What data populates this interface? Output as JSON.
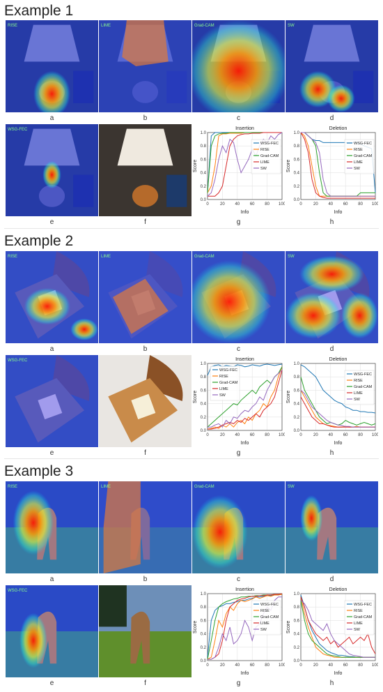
{
  "examples": [
    {
      "title": "Example 1",
      "captions": [
        "a",
        "b",
        "c",
        "d",
        "e",
        "f",
        "g",
        "h"
      ],
      "heatmap_labels": {
        "a": "RISE",
        "b": "LIME",
        "c": "Grad-CAM",
        "d": "SW",
        "e": "WSG-FEC"
      },
      "image": "lamp"
    },
    {
      "title": "Example 2",
      "captions": [
        "a",
        "b",
        "c",
        "d",
        "e",
        "f",
        "g",
        "h"
      ],
      "heatmap_labels": {
        "a": "RISE",
        "b": "LIME",
        "c": "Grad-CAM",
        "d": "SW",
        "e": "WSG-FEC"
      },
      "image": "bread"
    },
    {
      "title": "Example 3",
      "captions": [
        "a",
        "b",
        "c",
        "d",
        "e",
        "f",
        "g",
        "h"
      ],
      "heatmap_labels": {
        "a": "RISE",
        "b": "LIME",
        "c": "Grad-CAM",
        "d": "SW",
        "e": "WSG-FEC"
      },
      "image": "deer"
    }
  ],
  "legend": [
    "WSG-FEC",
    "RISE",
    "Grad-CAM",
    "LIME",
    "SW"
  ],
  "colors": {
    "WSG-FEC": "#1f77b4",
    "RISE": "#ff7f0e",
    "Grad-CAM": "#2ca02c",
    "LIME": "#d62728",
    "SW": "#9467bd"
  },
  "chart_data": [
    {
      "id": "ex1-insertion",
      "type": "line",
      "title": "Insertion",
      "xlabel": "Info",
      "ylabel": "Score",
      "xlim": [
        0,
        100
      ],
      "ylim": [
        0,
        1.0
      ],
      "xticks": [
        0,
        20,
        40,
        60,
        80,
        100
      ],
      "yticks": [
        0.0,
        0.2,
        0.4,
        0.6,
        0.8,
        1.0
      ],
      "x": [
        0,
        5,
        10,
        15,
        20,
        25,
        30,
        35,
        40,
        45,
        50,
        55,
        60,
        65,
        70,
        75,
        80,
        85,
        90,
        95,
        100
      ],
      "legend_position": "right",
      "series": [
        {
          "name": "WSG-FEC",
          "values": [
            0.1,
            0.95,
            1.0,
            1.0,
            1.0,
            1.0,
            1.0,
            1.0,
            1.0,
            1.0,
            1.0,
            1.0,
            1.0,
            1.0,
            1.0,
            1.0,
            1.0,
            1.0,
            1.0,
            1.0,
            1.0
          ]
        },
        {
          "name": "RISE",
          "values": [
            0.1,
            0.2,
            0.5,
            0.95,
            0.98,
            0.98,
            0.99,
            0.99,
            0.99,
            0.99,
            1.0,
            1.0,
            1.0,
            1.0,
            1.0,
            1.0,
            1.0,
            1.0,
            1.0,
            1.0,
            1.0
          ]
        },
        {
          "name": "Grad-CAM",
          "values": [
            0.1,
            0.8,
            0.95,
            0.98,
            0.99,
            0.99,
            1.0,
            1.0,
            1.0,
            1.0,
            1.0,
            1.0,
            1.0,
            1.0,
            1.0,
            1.0,
            1.0,
            1.0,
            1.0,
            1.0,
            1.0
          ]
        },
        {
          "name": "LIME",
          "values": [
            0.05,
            0.05,
            0.05,
            0.1,
            0.2,
            0.5,
            0.8,
            0.9,
            0.95,
            0.97,
            0.98,
            0.98,
            0.99,
            0.99,
            0.99,
            1.0,
            1.0,
            1.0,
            1.0,
            1.0,
            1.0
          ]
        },
        {
          "name": "SW",
          "values": [
            0.05,
            0.1,
            0.3,
            0.6,
            0.8,
            0.7,
            0.9,
            0.85,
            0.6,
            0.4,
            0.5,
            0.6,
            0.75,
            0.65,
            0.8,
            0.9,
            0.85,
            0.95,
            0.9,
            0.97,
            1.0
          ]
        }
      ]
    },
    {
      "id": "ex1-deletion",
      "type": "line",
      "title": "Deletion",
      "xlabel": "Info",
      "ylabel": "Score",
      "xlim": [
        0,
        100
      ],
      "ylim": [
        0,
        1.0
      ],
      "xticks": [
        0,
        20,
        40,
        60,
        80,
        100
      ],
      "yticks": [
        0.0,
        0.2,
        0.4,
        0.6,
        0.8,
        1.0
      ],
      "x": [
        0,
        5,
        10,
        15,
        20,
        25,
        30,
        35,
        40,
        45,
        50,
        55,
        60,
        65,
        70,
        75,
        80,
        85,
        90,
        95,
        100
      ],
      "legend_position": "right",
      "series": [
        {
          "name": "WSG-FEC",
          "values": [
            1.0,
            1.0,
            0.95,
            0.9,
            0.88,
            0.88,
            0.85,
            0.85,
            0.85,
            0.85,
            0.85,
            0.85,
            0.85,
            0.85,
            0.85,
            0.85,
            0.83,
            0.8,
            0.78,
            0.76,
            0.1
          ]
        },
        {
          "name": "RISE",
          "values": [
            1.0,
            0.95,
            0.8,
            0.5,
            0.2,
            0.05,
            0.05,
            0.05,
            0.05,
            0.05,
            0.05,
            0.05,
            0.05,
            0.05,
            0.05,
            0.05,
            0.05,
            0.05,
            0.05,
            0.05,
            0.05
          ]
        },
        {
          "name": "Grad-CAM",
          "values": [
            1.0,
            1.0,
            0.95,
            0.9,
            0.8,
            0.4,
            0.1,
            0.05,
            0.05,
            0.05,
            0.05,
            0.05,
            0.05,
            0.05,
            0.05,
            0.05,
            0.1,
            0.1,
            0.1,
            0.1,
            0.1
          ]
        },
        {
          "name": "LIME",
          "values": [
            1.0,
            0.9,
            0.7,
            0.3,
            0.1,
            0.05,
            0.03,
            0.02,
            0.02,
            0.02,
            0.02,
            0.02,
            0.02,
            0.02,
            0.02,
            0.02,
            0.02,
            0.02,
            0.02,
            0.02,
            0.02
          ]
        },
        {
          "name": "SW",
          "values": [
            1.0,
            1.0,
            0.95,
            0.9,
            0.85,
            0.7,
            0.3,
            0.1,
            0.05,
            0.05,
            0.05,
            0.05,
            0.05,
            0.05,
            0.05,
            0.05,
            0.05,
            0.05,
            0.05,
            0.05,
            0.05
          ]
        }
      ]
    },
    {
      "id": "ex2-insertion",
      "type": "line",
      "title": "Insertion",
      "xlabel": "Info",
      "ylabel": "Score",
      "xlim": [
        0,
        100
      ],
      "ylim": [
        0,
        1.0
      ],
      "xticks": [
        0,
        20,
        40,
        60,
        80,
        100
      ],
      "yticks": [
        0.0,
        0.2,
        0.4,
        0.6,
        0.8,
        1.0
      ],
      "x": [
        0,
        5,
        10,
        15,
        20,
        25,
        30,
        35,
        40,
        45,
        50,
        55,
        60,
        65,
        70,
        75,
        80,
        85,
        90,
        95,
        100
      ],
      "legend_position": "top-left",
      "series": [
        {
          "name": "WSG-FEC",
          "values": [
            0.82,
            0.95,
            0.97,
            0.98,
            0.95,
            0.97,
            0.96,
            0.95,
            0.98,
            0.97,
            0.95,
            0.96,
            0.98,
            0.97,
            0.96,
            0.98,
            0.99,
            0.98,
            0.97,
            0.98,
            0.99
          ]
        },
        {
          "name": "RISE",
          "values": [
            0.02,
            0.03,
            0.05,
            0.03,
            0.08,
            0.05,
            0.1,
            0.05,
            0.12,
            0.15,
            0.1,
            0.2,
            0.15,
            0.25,
            0.3,
            0.4,
            0.35,
            0.5,
            0.6,
            0.8,
            0.95
          ]
        },
        {
          "name": "Grad-CAM",
          "values": [
            0.05,
            0.1,
            0.15,
            0.2,
            0.25,
            0.3,
            0.35,
            0.4,
            0.38,
            0.45,
            0.5,
            0.55,
            0.6,
            0.55,
            0.65,
            0.7,
            0.75,
            0.7,
            0.8,
            0.85,
            0.95
          ]
        },
        {
          "name": "LIME",
          "values": [
            0.02,
            0.02,
            0.03,
            0.05,
            0.08,
            0.1,
            0.12,
            0.1,
            0.15,
            0.12,
            0.18,
            0.15,
            0.2,
            0.25,
            0.2,
            0.3,
            0.35,
            0.4,
            0.5,
            0.7,
            0.9
          ]
        },
        {
          "name": "SW",
          "values": [
            0.05,
            0.05,
            0.08,
            0.1,
            0.05,
            0.15,
            0.1,
            0.2,
            0.18,
            0.25,
            0.3,
            0.28,
            0.35,
            0.4,
            0.5,
            0.45,
            0.6,
            0.7,
            0.8,
            0.85,
            0.9
          ]
        }
      ]
    },
    {
      "id": "ex2-deletion",
      "type": "line",
      "title": "Deletion",
      "xlabel": "Info",
      "ylabel": "Score",
      "xlim": [
        0,
        100
      ],
      "ylim": [
        0,
        1.0
      ],
      "xticks": [
        0,
        20,
        40,
        60,
        80,
        100
      ],
      "yticks": [
        0.0,
        0.2,
        0.4,
        0.6,
        0.8,
        1.0
      ],
      "x": [
        0,
        5,
        10,
        15,
        20,
        25,
        30,
        35,
        40,
        45,
        50,
        55,
        60,
        65,
        70,
        75,
        80,
        85,
        90,
        95,
        100
      ],
      "legend_position": "right",
      "series": [
        {
          "name": "WSG-FEC",
          "values": [
            0.98,
            0.95,
            0.9,
            0.85,
            0.8,
            0.7,
            0.6,
            0.55,
            0.5,
            0.45,
            0.42,
            0.4,
            0.35,
            0.33,
            0.3,
            0.3,
            0.28,
            0.28,
            0.27,
            0.27,
            0.26
          ]
        },
        {
          "name": "RISE",
          "values": [
            0.6,
            0.5,
            0.4,
            0.3,
            0.2,
            0.15,
            0.1,
            0.08,
            0.07,
            0.06,
            0.05,
            0.05,
            0.06,
            0.05,
            0.05,
            0.06,
            0.05,
            0.05,
            0.05,
            0.05,
            0.05
          ]
        },
        {
          "name": "Grad-CAM",
          "values": [
            0.8,
            0.6,
            0.5,
            0.4,
            0.3,
            0.2,
            0.15,
            0.1,
            0.12,
            0.1,
            0.08,
            0.1,
            0.15,
            0.12,
            0.1,
            0.08,
            0.1,
            0.12,
            0.1,
            0.08,
            0.1
          ]
        },
        {
          "name": "LIME",
          "values": [
            0.5,
            0.4,
            0.3,
            0.2,
            0.15,
            0.1,
            0.1,
            0.08,
            0.06,
            0.05,
            0.05,
            0.05,
            0.05,
            0.05,
            0.05,
            0.05,
            0.05,
            0.05,
            0.05,
            0.05,
            0.05
          ]
        },
        {
          "name": "SW",
          "values": [
            0.6,
            0.55,
            0.45,
            0.35,
            0.3,
            0.25,
            0.2,
            0.15,
            0.12,
            0.1,
            0.08,
            0.07,
            0.06,
            0.06,
            0.05,
            0.05,
            0.05,
            0.05,
            0.05,
            0.05,
            0.05
          ]
        }
      ]
    },
    {
      "id": "ex3-insertion",
      "type": "line",
      "title": "Insertion",
      "xlabel": "Info",
      "ylabel": "Score",
      "xlim": [
        0,
        100
      ],
      "ylim": [
        0,
        1.0
      ],
      "xticks": [
        0,
        20,
        40,
        60,
        80,
        100
      ],
      "yticks": [
        0.0,
        0.2,
        0.4,
        0.6,
        0.8,
        1.0
      ],
      "x": [
        0,
        5,
        10,
        15,
        20,
        25,
        30,
        35,
        40,
        45,
        50,
        55,
        60,
        65,
        70,
        75,
        80,
        85,
        90,
        95,
        100
      ],
      "legend_position": "right",
      "series": [
        {
          "name": "WSG-FEC",
          "values": [
            0.05,
            0.6,
            0.75,
            0.8,
            0.82,
            0.85,
            0.85,
            0.87,
            0.88,
            0.9,
            0.9,
            0.92,
            0.93,
            0.95,
            0.95,
            0.96,
            0.97,
            0.97,
            0.98,
            0.98,
            0.99
          ]
        },
        {
          "name": "RISE",
          "values": [
            0.02,
            0.05,
            0.3,
            0.6,
            0.5,
            0.7,
            0.8,
            0.75,
            0.85,
            0.9,
            0.88,
            0.9,
            0.92,
            0.95,
            0.93,
            0.95,
            0.97,
            0.96,
            0.98,
            0.98,
            0.99
          ]
        },
        {
          "name": "Grad-CAM",
          "values": [
            0.02,
            0.3,
            0.6,
            0.8,
            0.85,
            0.88,
            0.9,
            0.92,
            0.93,
            0.95,
            0.95,
            0.96,
            0.96,
            0.97,
            0.97,
            0.98,
            0.98,
            0.98,
            0.99,
            0.99,
            1.0
          ]
        },
        {
          "name": "LIME",
          "values": [
            0.02,
            0.02,
            0.05,
            0.1,
            0.3,
            0.6,
            0.8,
            0.85,
            0.9,
            0.92,
            0.93,
            0.95,
            0.96,
            0.96,
            0.97,
            0.97,
            0.98,
            0.98,
            0.99,
            0.99,
            1.0
          ]
        },
        {
          "name": "SW",
          "values": [
            0.02,
            0.02,
            0.05,
            0.2,
            0.4,
            0.3,
            0.5,
            0.25,
            0.3,
            0.4,
            0.6,
            0.5,
            0.3,
            0.5,
            0.55,
            0.7,
            0.8,
            0.75,
            0.9,
            0.95,
            0.95
          ]
        }
      ]
    },
    {
      "id": "ex3-deletion",
      "type": "line",
      "title": "Deletion",
      "xlabel": "Info",
      "ylabel": "Score",
      "xlim": [
        0,
        100
      ],
      "ylim": [
        0,
        1.0
      ],
      "xticks": [
        0,
        20,
        40,
        60,
        80,
        100
      ],
      "yticks": [
        0.0,
        0.2,
        0.4,
        0.6,
        0.8,
        1.0
      ],
      "x": [
        0,
        5,
        10,
        15,
        20,
        25,
        30,
        35,
        40,
        45,
        50,
        55,
        60,
        65,
        70,
        75,
        80,
        85,
        90,
        95,
        100
      ],
      "legend_position": "right",
      "series": [
        {
          "name": "WSG-FEC",
          "values": [
            0.98,
            0.8,
            0.6,
            0.45,
            0.35,
            0.25,
            0.2,
            0.15,
            0.12,
            0.1,
            0.08,
            0.08,
            0.07,
            0.06,
            0.06,
            0.05,
            0.05,
            0.05,
            0.05,
            0.05,
            0.05
          ]
        },
        {
          "name": "RISE",
          "values": [
            0.95,
            0.7,
            0.5,
            0.35,
            0.2,
            0.15,
            0.1,
            0.08,
            0.07,
            0.05,
            0.05,
            0.05,
            0.05,
            0.05,
            0.05,
            0.05,
            0.05,
            0.05,
            0.05,
            0.05,
            0.05
          ]
        },
        {
          "name": "Grad-CAM",
          "values": [
            0.9,
            0.6,
            0.4,
            0.3,
            0.25,
            0.2,
            0.15,
            0.1,
            0.08,
            0.07,
            0.06,
            0.05,
            0.05,
            0.05,
            0.05,
            0.05,
            0.05,
            0.05,
            0.05,
            0.05,
            0.05
          ]
        },
        {
          "name": "LIME",
          "values": [
            0.95,
            0.8,
            0.6,
            0.5,
            0.4,
            0.35,
            0.3,
            0.35,
            0.25,
            0.3,
            0.2,
            0.25,
            0.3,
            0.35,
            0.25,
            0.3,
            0.35,
            0.3,
            0.4,
            0.2,
            0.1
          ]
        },
        {
          "name": "SW",
          "values": [
            0.9,
            0.85,
            0.75,
            0.6,
            0.55,
            0.5,
            0.45,
            0.55,
            0.4,
            0.3,
            0.25,
            0.2,
            0.15,
            0.1,
            0.08,
            0.07,
            0.06,
            0.05,
            0.05,
            0.05,
            0.05
          ]
        }
      ]
    }
  ]
}
